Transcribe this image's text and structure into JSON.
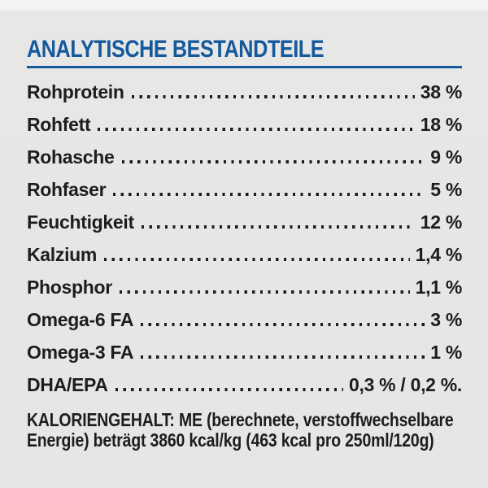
{
  "colors": {
    "background": "#e6e6e5",
    "background_top_strip": "#f2f3f2",
    "accent_blue": "#15599d",
    "text": "#1d1d1b"
  },
  "section": {
    "title": "ANALYTISCHE BESTANDTEILE",
    "rows": [
      {
        "label": "Rohprotein",
        "value": "38 %"
      },
      {
        "label": "Rohfett",
        "value": "18 %"
      },
      {
        "label": "Rohasche",
        "value": "9 %"
      },
      {
        "label": "Rohfaser",
        "value": "5 %"
      },
      {
        "label": "Feuchtigkeit",
        "value": "12 %"
      },
      {
        "label": "Kalzium",
        "value": "1,4 %"
      },
      {
        "label": "Phosphor",
        "value": "1,1 %"
      },
      {
        "label": "Omega-6 FA",
        "value": "3 %"
      },
      {
        "label": "Omega-3 FA",
        "value": "1 %"
      },
      {
        "label": "DHA/EPA",
        "value": "0,3 % / 0,2 %."
      }
    ],
    "footer": "KALORIENGEHALT: ME (berechnete, verstoffwechselbare Energie) beträgt 3860 kcal/kg (463 kcal pro 250ml/120g)"
  }
}
